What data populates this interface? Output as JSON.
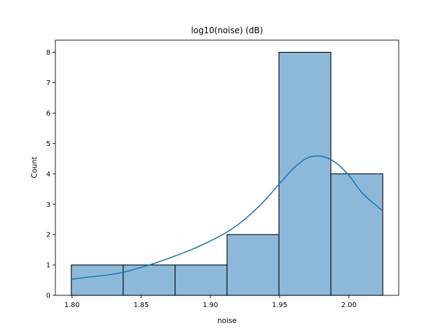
{
  "chart_data": {
    "type": "bar",
    "title": "log10(noise) (dB)",
    "xlabel": "noise",
    "ylabel": "Count",
    "bins": [
      {
        "x0": 1.7995,
        "x1": 1.837,
        "count": 1
      },
      {
        "x0": 1.837,
        "x1": 1.8745,
        "count": 1
      },
      {
        "x0": 1.8745,
        "x1": 1.912,
        "count": 1
      },
      {
        "x0": 1.912,
        "x1": 1.9495,
        "count": 2
      },
      {
        "x0": 1.9495,
        "x1": 1.987,
        "count": 8
      },
      {
        "x0": 1.987,
        "x1": 2.0245,
        "count": 4
      }
    ],
    "kde": {
      "x": [
        1.7995,
        1.81,
        1.82,
        1.83,
        1.84,
        1.85,
        1.86,
        1.87,
        1.88,
        1.89,
        1.9,
        1.91,
        1.92,
        1.93,
        1.94,
        1.95,
        1.96,
        1.97,
        1.98,
        1.99,
        2.0,
        2.01,
        2.0245
      ],
      "y": [
        0.53,
        0.59,
        0.64,
        0.7,
        0.79,
        0.92,
        1.06,
        1.22,
        1.39,
        1.58,
        1.79,
        2.03,
        2.33,
        2.71,
        3.16,
        3.68,
        4.18,
        4.52,
        4.58,
        4.38,
        3.95,
        3.35,
        2.78
      ]
    },
    "xlim": [
      1.788,
      2.036
    ],
    "ylim": [
      0,
      8.4
    ],
    "xticks": [
      1.8,
      1.85,
      1.9,
      1.95,
      2.0
    ],
    "xtick_labels": [
      "1.80",
      "1.85",
      "1.90",
      "1.95",
      "2.00"
    ],
    "yticks": [
      0,
      1,
      2,
      3,
      4,
      5,
      6,
      7,
      8
    ],
    "ytick_labels": [
      "0",
      "1",
      "2",
      "3",
      "4",
      "5",
      "6",
      "7",
      "8"
    ],
    "grid": false,
    "colors": {
      "bar_fill": "#8cb9da",
      "bar_edge": "#000000",
      "kde_line": "#1f77b4"
    }
  }
}
